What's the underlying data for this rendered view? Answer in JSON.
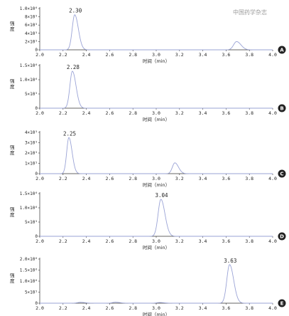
{
  "watermark": "中国药学杂志",
  "chart_data": [
    {
      "panel": "A",
      "type": "line",
      "xlabel": "时间（min）",
      "ylabel": "强度",
      "xlim": [
        2.0,
        4.0
      ],
      "xticks": [
        "2.0",
        "2.2",
        "2.4",
        "2.6",
        "2.8",
        "3.0",
        "3.2",
        "3.4",
        "3.6",
        "3.8",
        "4.0"
      ],
      "ylim": [
        0,
        1000000
      ],
      "yticks": [
        {
          "v": 0,
          "t": "0"
        },
        {
          "v": 200000,
          "t": "2×10⁵"
        },
        {
          "v": 400000,
          "t": "4×10⁵"
        },
        {
          "v": 600000,
          "t": "6×10⁵"
        },
        {
          "v": 800000,
          "t": "8×10⁵"
        },
        {
          "v": 1000000,
          "t": "1.0×10⁶"
        }
      ],
      "peaks": [
        {
          "rt": 2.3,
          "height": 850000,
          "width": 0.025,
          "label": "2.30"
        },
        {
          "rt": 3.69,
          "height": 200000,
          "width": 0.03,
          "label": ""
        }
      ]
    },
    {
      "panel": "B",
      "type": "line",
      "xlabel": "时间（min）",
      "ylabel": "强度",
      "xlim": [
        2.0,
        4.0
      ],
      "xticks": [
        "2.0",
        "2.2",
        "2.4",
        "2.6",
        "2.8",
        "3.0",
        "3.2",
        "3.4",
        "3.6",
        "3.8",
        "4.0"
      ],
      "ylim": [
        0,
        1500000
      ],
      "yticks": [
        {
          "v": 0,
          "t": "0"
        },
        {
          "v": 500000,
          "t": "5×10⁵"
        },
        {
          "v": 1000000,
          "t": "1.0×10⁶"
        },
        {
          "v": 1500000,
          "t": "1.5×10⁶"
        }
      ],
      "peaks": [
        {
          "rt": 2.28,
          "height": 1300000,
          "width": 0.025,
          "label": "2.28"
        }
      ]
    },
    {
      "panel": "C",
      "type": "line",
      "xlabel": "时间（min）",
      "ylabel": "强度",
      "xlim": [
        2.0,
        4.0
      ],
      "xticks": [
        "2.0",
        "2.2",
        "2.4",
        "2.6",
        "2.8",
        "3.0",
        "3.2",
        "3.4",
        "3.6",
        "3.8",
        "4.0"
      ],
      "ylim": [
        0,
        400000
      ],
      "yticks": [
        {
          "v": 0,
          "t": "0"
        },
        {
          "v": 100000,
          "t": "1×10⁵"
        },
        {
          "v": 200000,
          "t": "2×10⁵"
        },
        {
          "v": 300000,
          "t": "3×10⁵"
        },
        {
          "v": 400000,
          "t": "4×10⁵"
        }
      ],
      "peaks": [
        {
          "rt": 2.25,
          "height": 350000,
          "width": 0.022,
          "label": "2.25"
        },
        {
          "rt": 3.16,
          "height": 105000,
          "width": 0.025,
          "label": ""
        }
      ]
    },
    {
      "panel": "D",
      "type": "line",
      "xlabel": "时间（min）",
      "ylabel": "强度",
      "xlim": [
        2.0,
        4.0
      ],
      "xticks": [
        "2.0",
        "2.2",
        "2.4",
        "2.6",
        "2.8",
        "3.0",
        "3.2",
        "3.4",
        "3.6",
        "3.8",
        "4.0"
      ],
      "ylim": [
        0,
        1500000
      ],
      "yticks": [
        {
          "v": 0,
          "t": "0"
        },
        {
          "v": 500000,
          "t": "5×10⁵"
        },
        {
          "v": 1000000,
          "t": "1.0×10⁶"
        },
        {
          "v": 1500000,
          "t": "1.5×10⁶"
        }
      ],
      "peaks": [
        {
          "rt": 3.04,
          "height": 1300000,
          "width": 0.028,
          "label": "3.04"
        }
      ]
    },
    {
      "panel": "E",
      "type": "line",
      "xlabel": "时间（min）",
      "ylabel": "强度",
      "xlim": [
        2.0,
        4.0
      ],
      "xticks": [
        "2.0",
        "2.2",
        "2.4",
        "2.6",
        "2.8",
        "3.0",
        "3.2",
        "3.4",
        "3.6",
        "3.8",
        "4.0"
      ],
      "ylim": [
        0,
        2000000
      ],
      "yticks": [
        {
          "v": 0,
          "t": "0"
        },
        {
          "v": 500000,
          "t": "5×10⁵"
        },
        {
          "v": 1000000,
          "t": "1.0×10⁶"
        },
        {
          "v": 1500000,
          "t": "1.5×10⁶"
        },
        {
          "v": 2000000,
          "t": "2.0×10⁶"
        }
      ],
      "peaks": [
        {
          "rt": 2.35,
          "height": 40000,
          "width": 0.03,
          "label": ""
        },
        {
          "rt": 2.65,
          "height": 45000,
          "width": 0.03,
          "label": ""
        },
        {
          "rt": 3.03,
          "height": 30000,
          "width": 0.03,
          "label": ""
        },
        {
          "rt": 3.63,
          "height": 1750000,
          "width": 0.028,
          "label": "3.63"
        }
      ]
    }
  ]
}
